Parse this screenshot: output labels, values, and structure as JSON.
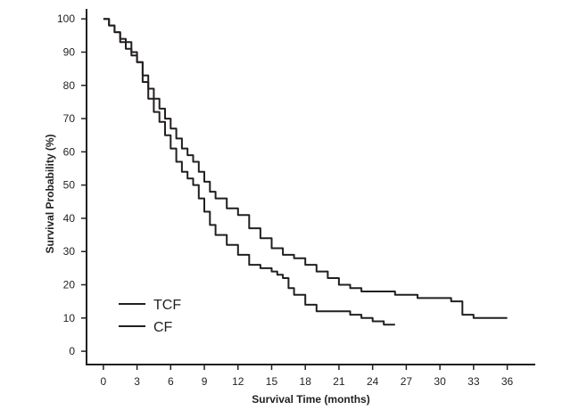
{
  "chart_data": {
    "type": "line",
    "title": "",
    "xlabel": "Survival Time (months)",
    "ylabel": "Survival Probability (%)",
    "xlim": [
      -1.5,
      38.5
    ],
    "ylim": [
      -4,
      103
    ],
    "xticks": [
      0,
      3,
      6,
      9,
      12,
      15,
      18,
      21,
      24,
      27,
      30,
      33,
      36
    ],
    "yticks": [
      0,
      10,
      20,
      30,
      40,
      50,
      60,
      70,
      80,
      90,
      100
    ],
    "step": true,
    "grid": false,
    "legend_position": "bottom-left",
    "line_color": "#231f20",
    "series": [
      {
        "name": "TCF",
        "x": [
          0,
          0.5,
          1,
          1.5,
          2,
          2.5,
          3,
          3.5,
          4,
          4.5,
          5,
          5.5,
          6,
          6.5,
          7,
          7.5,
          8,
          8.5,
          9,
          9.5,
          10,
          11,
          12,
          13,
          14,
          15,
          16,
          17,
          18,
          19,
          20,
          21,
          22,
          23,
          24,
          25,
          26,
          27,
          28,
          29,
          30,
          31,
          32,
          33,
          34,
          35,
          36
        ],
        "y": [
          100,
          98,
          96,
          94,
          93,
          90,
          87,
          83,
          79,
          76,
          73,
          70,
          67,
          64,
          61,
          59,
          57,
          54,
          51,
          48,
          46,
          43,
          41,
          37,
          34,
          31,
          29,
          28,
          26,
          24,
          22,
          20,
          19,
          18,
          18,
          18,
          17,
          17,
          16,
          16,
          16,
          15,
          11,
          10,
          10,
          10,
          10
        ]
      },
      {
        "name": "CF",
        "x": [
          0,
          0.5,
          1,
          1.5,
          2,
          2.5,
          3,
          3.5,
          4,
          4.5,
          5,
          5.5,
          6,
          6.5,
          7,
          7.5,
          8,
          8.5,
          9,
          9.5,
          10,
          11,
          12,
          13,
          14,
          15,
          15.5,
          16,
          16.5,
          17,
          18,
          19,
          20,
          21,
          22,
          23,
          24,
          25,
          26
        ],
        "y": [
          100,
          98,
          96,
          93,
          91,
          89,
          87,
          81,
          76,
          72,
          69,
          65,
          61,
          57,
          54,
          52,
          50,
          46,
          42,
          38,
          35,
          32,
          29,
          26,
          25,
          24,
          23,
          22,
          19,
          17,
          14,
          12,
          12,
          12,
          11,
          10,
          9,
          8,
          8
        ]
      }
    ]
  }
}
